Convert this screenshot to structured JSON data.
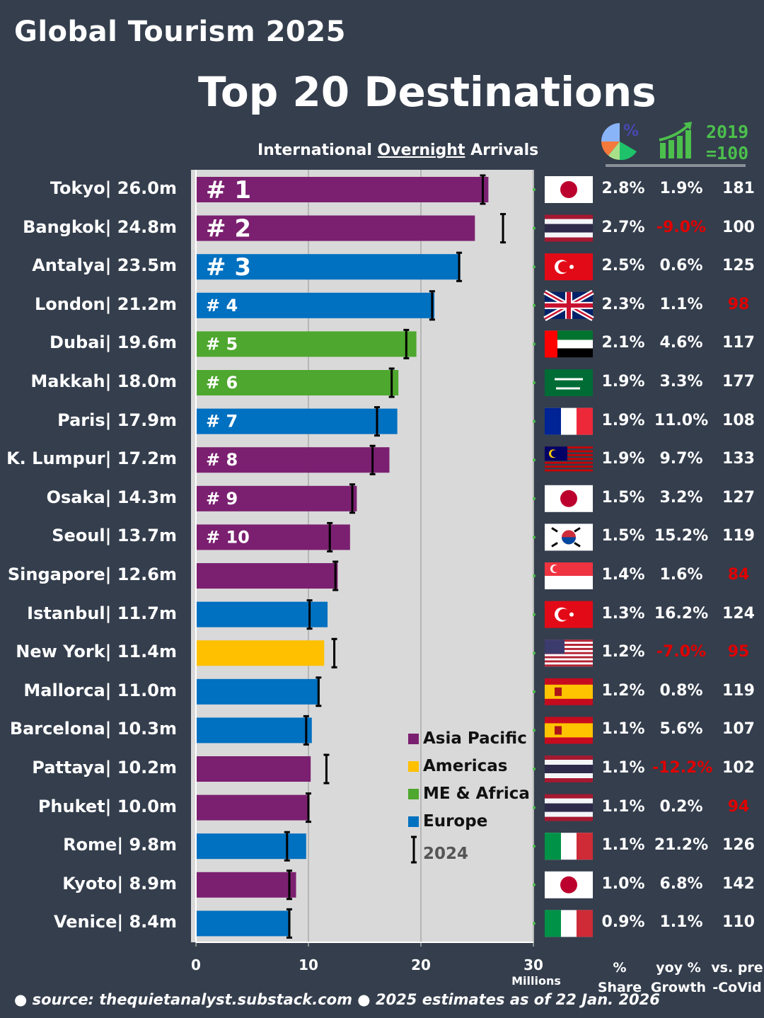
{
  "brand": "Global Tourism 2025",
  "title": "Top 20 Destinations",
  "subtitle_parts": [
    "International ",
    "Overnight",
    " Arrivals"
  ],
  "header_icons": {
    "share": "pie-chart-percent-icon",
    "growth": "bar-growth-arrow-icon",
    "baseline_line1": "2019",
    "baseline_line2": "=100"
  },
  "column_headers": {
    "share": [
      "%",
      "Share"
    ],
    "growth": [
      "yoy %",
      "Growth"
    ],
    "precovid": [
      "vs. pre",
      "-CoVid"
    ]
  },
  "colors": {
    "Asia Pacific": "#7b2070",
    "Americas": "#ffc000",
    "ME & Africa": "#4ea72e",
    "Europe": "#0070c0",
    "negative": "#e00000",
    "plot_bg": "#d9d9d9",
    "background": "#343e4d"
  },
  "legend": {
    "items": [
      "Asia Pacific",
      "Americas",
      "ME & Africa",
      "Europe"
    ],
    "marker_label": "2024"
  },
  "footer": "● source: thequietanalyst.substack.com ● 2025 estimates as of 22 Jan. 2026",
  "chart_data": {
    "type": "bar",
    "orientation": "horizontal",
    "xlim": [
      0,
      30
    ],
    "xticks": [
      "0",
      "10",
      "20",
      "30"
    ],
    "xunit": "Millions",
    "grid": true,
    "legend_position": "bottom-right",
    "rows": [
      {
        "rank": "# 1",
        "city": "Tokyo",
        "label": "26.0m",
        "value": 26.0,
        "v2024": 25.5,
        "region": "Asia Pacific",
        "flag": "jp",
        "share": "2.8%",
        "yoy": "1.9%",
        "precovid": "181",
        "yoy_neg": false,
        "pre_neg": false
      },
      {
        "rank": "# 2",
        "city": "Bangkok",
        "label": "24.8m",
        "value": 24.8,
        "v2024": 27.3,
        "region": "Asia Pacific",
        "flag": "th",
        "share": "2.7%",
        "yoy": "-9.0%",
        "precovid": "100",
        "yoy_neg": true,
        "pre_neg": false
      },
      {
        "rank": "# 3",
        "city": "Antalya",
        "label": "23.5m",
        "value": 23.5,
        "v2024": 23.4,
        "region": "Europe",
        "flag": "tr",
        "share": "2.5%",
        "yoy": "0.6%",
        "precovid": "125",
        "yoy_neg": false,
        "pre_neg": false
      },
      {
        "rank": "# 4",
        "city": "London",
        "label": "21.2m",
        "value": 21.2,
        "v2024": 21.0,
        "region": "Europe",
        "flag": "gb",
        "share": "2.3%",
        "yoy": "1.1%",
        "precovid": "98",
        "yoy_neg": false,
        "pre_neg": true
      },
      {
        "rank": "# 5",
        "city": "Dubai",
        "label": "19.6m",
        "value": 19.6,
        "v2024": 18.7,
        "region": "ME & Africa",
        "flag": "ae",
        "share": "2.1%",
        "yoy": "4.6%",
        "precovid": "117",
        "yoy_neg": false,
        "pre_neg": false
      },
      {
        "rank": "# 6",
        "city": "Makkah",
        "label": "18.0m",
        "value": 18.0,
        "v2024": 17.4,
        "region": "ME & Africa",
        "flag": "sa",
        "share": "1.9%",
        "yoy": "3.3%",
        "precovid": "177",
        "yoy_neg": false,
        "pre_neg": false
      },
      {
        "rank": "# 7",
        "city": "Paris",
        "label": "17.9m",
        "value": 17.9,
        "v2024": 16.1,
        "region": "Europe",
        "flag": "fr",
        "share": "1.9%",
        "yoy": "11.0%",
        "precovid": "108",
        "yoy_neg": false,
        "pre_neg": false
      },
      {
        "rank": "# 8",
        "city": "K. Lumpur",
        "label": "17.2m",
        "value": 17.2,
        "v2024": 15.7,
        "region": "Asia Pacific",
        "flag": "my",
        "share": "1.9%",
        "yoy": "9.7%",
        "precovid": "133",
        "yoy_neg": false,
        "pre_neg": false
      },
      {
        "rank": "# 9",
        "city": "Osaka",
        "label": "14.3m",
        "value": 14.3,
        "v2024": 13.9,
        "region": "Asia Pacific",
        "flag": "jp",
        "share": "1.5%",
        "yoy": "3.2%",
        "precovid": "127",
        "yoy_neg": false,
        "pre_neg": false
      },
      {
        "rank": "# 10",
        "city": "Seoul",
        "label": "13.7m",
        "value": 13.7,
        "v2024": 11.9,
        "region": "Asia Pacific",
        "flag": "kr",
        "share": "1.5%",
        "yoy": "15.2%",
        "precovid": "119",
        "yoy_neg": false,
        "pre_neg": false
      },
      {
        "rank": "",
        "city": "Singapore",
        "label": "12.6m",
        "value": 12.6,
        "v2024": 12.4,
        "region": "Asia Pacific",
        "flag": "sg",
        "share": "1.4%",
        "yoy": "1.6%",
        "precovid": "84",
        "yoy_neg": false,
        "pre_neg": true
      },
      {
        "rank": "",
        "city": "Istanbul",
        "label": "11.7m",
        "value": 11.7,
        "v2024": 10.1,
        "region": "Europe",
        "flag": "tr",
        "share": "1.3%",
        "yoy": "16.2%",
        "precovid": "124",
        "yoy_neg": false,
        "pre_neg": false
      },
      {
        "rank": "",
        "city": "New York",
        "label": "11.4m",
        "value": 11.4,
        "v2024": 12.3,
        "region": "Americas",
        "flag": "us",
        "share": "1.2%",
        "yoy": "-7.0%",
        "precovid": "95",
        "yoy_neg": true,
        "pre_neg": true
      },
      {
        "rank": "",
        "city": "Mallorca",
        "label": "11.0m",
        "value": 11.0,
        "v2024": 10.9,
        "region": "Europe",
        "flag": "es",
        "share": "1.2%",
        "yoy": "0.8%",
        "precovid": "119",
        "yoy_neg": false,
        "pre_neg": false
      },
      {
        "rank": "",
        "city": "Barcelona",
        "label": "10.3m",
        "value": 10.3,
        "v2024": 9.8,
        "region": "Europe",
        "flag": "es",
        "share": "1.1%",
        "yoy": "5.6%",
        "precovid": "107",
        "yoy_neg": false,
        "pre_neg": false
      },
      {
        "rank": "",
        "city": "Pattaya",
        "label": "10.2m",
        "value": 10.2,
        "v2024": 11.6,
        "region": "Asia Pacific",
        "flag": "th",
        "share": "1.1%",
        "yoy": "-12.2%",
        "precovid": "102",
        "yoy_neg": true,
        "pre_neg": false
      },
      {
        "rank": "",
        "city": "Phuket",
        "label": "10.0m",
        "value": 10.0,
        "v2024": 10.0,
        "region": "Asia Pacific",
        "flag": "th",
        "share": "1.1%",
        "yoy": "0.2%",
        "precovid": "94",
        "yoy_neg": false,
        "pre_neg": true
      },
      {
        "rank": "",
        "city": "Rome",
        "label": "9.8m",
        "value": 9.8,
        "v2024": 8.1,
        "region": "Europe",
        "flag": "it",
        "share": "1.1%",
        "yoy": "21.2%",
        "precovid": "126",
        "yoy_neg": false,
        "pre_neg": false
      },
      {
        "rank": "",
        "city": "Kyoto",
        "label": "8.9m",
        "value": 8.9,
        "v2024": 8.3,
        "region": "Asia Pacific",
        "flag": "jp",
        "share": "1.0%",
        "yoy": "6.8%",
        "precovid": "142",
        "yoy_neg": false,
        "pre_neg": false
      },
      {
        "rank": "",
        "city": "Venice",
        "label": "8.4m",
        "value": 8.4,
        "v2024": 8.3,
        "region": "Europe",
        "flag": "it",
        "share": "0.9%",
        "yoy": "1.1%",
        "precovid": "110",
        "yoy_neg": false,
        "pre_neg": false
      }
    ]
  }
}
